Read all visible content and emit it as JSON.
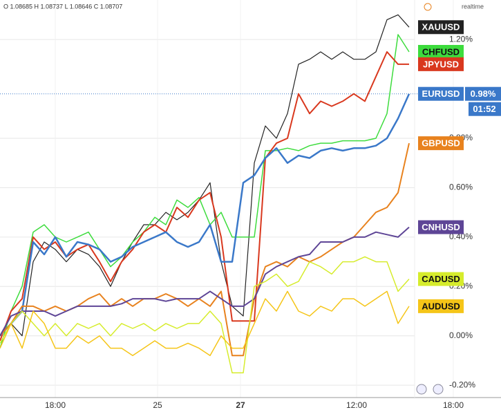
{
  "chart_data": {
    "type": "line",
    "ohlc": "O 1.08685 H 1.08737 L 1.08646 C 1.08707",
    "realtime": "realtime",
    "price_label": "0.98%",
    "price_level": 0.98,
    "countdown": "01:52",
    "x": [
      0,
      2,
      4,
      6,
      8,
      10,
      12,
      14,
      16,
      18,
      20,
      22,
      24,
      26,
      28,
      30,
      32,
      34,
      36,
      38,
      40,
      42,
      44,
      46,
      48,
      50,
      52,
      54,
      56,
      58,
      60,
      62,
      64,
      66,
      68,
      70,
      72,
      74
    ],
    "xlim": [
      0,
      82
    ],
    "xticks": [
      {
        "value": 10,
        "label": "18:00"
      },
      {
        "value": 28.5,
        "label": "25"
      },
      {
        "value": 43.5,
        "label": "27"
      },
      {
        "value": 64.5,
        "label": "12:00"
      },
      {
        "value": 82,
        "label": "18:00"
      }
    ],
    "ylim": [
      -0.25,
      1.36
    ],
    "yticks": [
      {
        "value": -0.2,
        "label": "-0.20%"
      },
      {
        "value": 0,
        "label": "0.00%"
      },
      {
        "value": 0.2,
        "label": "0.20%"
      },
      {
        "value": 0.4,
        "label": "0.40%"
      },
      {
        "value": 0.6,
        "label": "0.60%"
      },
      {
        "value": 0.8,
        "label": "0.80%"
      },
      {
        "value": 1.2,
        "label": "1.20%"
      }
    ],
    "grid": true,
    "series": [
      {
        "name": "XAUUSD",
        "color": "#222222",
        "width": 1.2,
        "values": [
          0.0,
          0.05,
          0.0,
          0.3,
          0.38,
          0.35,
          0.3,
          0.35,
          0.33,
          0.28,
          0.2,
          0.3,
          0.38,
          0.45,
          0.45,
          0.5,
          0.47,
          0.5,
          0.55,
          0.62,
          0.3,
          0.12,
          0.08,
          0.7,
          0.85,
          0.8,
          0.9,
          1.1,
          1.12,
          1.15,
          1.12,
          1.15,
          1.12,
          1.12,
          1.15,
          1.28,
          1.3,
          1.25
        ]
      },
      {
        "name": "CHFUSD",
        "color": "#3ddc3d",
        "width": 1.5,
        "values": [
          -0.05,
          0.1,
          0.2,
          0.42,
          0.45,
          0.4,
          0.38,
          0.4,
          0.42,
          0.35,
          0.28,
          0.32,
          0.38,
          0.42,
          0.48,
          0.45,
          0.55,
          0.52,
          0.56,
          0.45,
          0.5,
          0.4,
          0.4,
          0.4,
          0.75,
          0.75,
          0.76,
          0.75,
          0.77,
          0.78,
          0.78,
          0.79,
          0.79,
          0.79,
          0.8,
          0.9,
          1.22,
          1.15
        ]
      },
      {
        "name": "JPYUSD",
        "color": "#d9381e",
        "width": 2,
        "values": [
          -0.02,
          0.1,
          0.15,
          0.4,
          0.35,
          0.38,
          0.32,
          0.35,
          0.37,
          0.3,
          0.22,
          0.3,
          0.35,
          0.42,
          0.45,
          0.42,
          0.52,
          0.48,
          0.55,
          0.58,
          0.4,
          0.06,
          0.06,
          0.06,
          0.72,
          0.78,
          0.8,
          0.98,
          0.9,
          0.95,
          0.93,
          0.95,
          0.98,
          0.95,
          1.05,
          1.15,
          1.1,
          1.1
        ]
      },
      {
        "name": "EURUSD",
        "color": "#3a78c9",
        "width": 2.5,
        "values": [
          0.0,
          0.05,
          0.1,
          0.38,
          0.33,
          0.4,
          0.32,
          0.38,
          0.37,
          0.35,
          0.3,
          0.32,
          0.36,
          0.38,
          0.4,
          0.42,
          0.38,
          0.36,
          0.38,
          0.45,
          0.3,
          0.3,
          0.62,
          0.65,
          0.72,
          0.76,
          0.7,
          0.73,
          0.72,
          0.75,
          0.76,
          0.75,
          0.76,
          0.76,
          0.77,
          0.8,
          0.88,
          0.98
        ]
      },
      {
        "name": "GBPUSD",
        "color": "#e8821e",
        "width": 2,
        "values": [
          0.0,
          0.05,
          0.12,
          0.12,
          0.1,
          0.12,
          0.1,
          0.12,
          0.15,
          0.17,
          0.12,
          0.15,
          0.12,
          0.15,
          0.15,
          0.17,
          0.15,
          0.12,
          0.15,
          0.12,
          0.18,
          -0.08,
          -0.08,
          0.15,
          0.28,
          0.3,
          0.28,
          0.32,
          0.3,
          0.32,
          0.35,
          0.38,
          0.4,
          0.45,
          0.5,
          0.52,
          0.58,
          0.78
        ]
      },
      {
        "name": "CNHUSD",
        "color": "#5e4596",
        "width": 2,
        "values": [
          0.0,
          0.08,
          0.1,
          0.1,
          0.1,
          0.08,
          0.1,
          0.12,
          0.12,
          0.12,
          0.12,
          0.13,
          0.15,
          0.15,
          0.15,
          0.14,
          0.15,
          0.15,
          0.15,
          0.18,
          0.15,
          0.12,
          0.12,
          0.15,
          0.25,
          0.28,
          0.3,
          0.32,
          0.33,
          0.38,
          0.38,
          0.38,
          0.4,
          0.4,
          0.42,
          0.41,
          0.4,
          0.44
        ]
      },
      {
        "name": "CADUSD",
        "color": "#d6ec2c",
        "width": 1.5,
        "values": [
          -0.03,
          0.05,
          0.1,
          0.05,
          0.0,
          0.05,
          0.0,
          0.05,
          0.03,
          0.05,
          0.0,
          0.05,
          0.03,
          0.05,
          0.02,
          0.05,
          0.03,
          0.05,
          0.05,
          0.1,
          0.05,
          -0.15,
          -0.15,
          0.2,
          0.22,
          0.25,
          0.2,
          0.22,
          0.3,
          0.28,
          0.25,
          0.3,
          0.3,
          0.32,
          0.3,
          0.3,
          0.18,
          0.23
        ]
      },
      {
        "name": "AUDUSD",
        "color": "#f5c518",
        "width": 1.5,
        "values": [
          -0.05,
          0.05,
          -0.05,
          0.1,
          0.05,
          -0.05,
          -0.05,
          0.0,
          -0.03,
          0.0,
          -0.05,
          -0.05,
          -0.08,
          -0.05,
          -0.02,
          -0.05,
          -0.05,
          -0.03,
          -0.05,
          -0.08,
          0.0,
          -0.05,
          -0.05,
          0.05,
          0.15,
          0.1,
          0.18,
          0.1,
          0.08,
          0.12,
          0.1,
          0.15,
          0.15,
          0.12,
          0.15,
          0.18,
          0.05,
          0.12
        ]
      }
    ]
  }
}
